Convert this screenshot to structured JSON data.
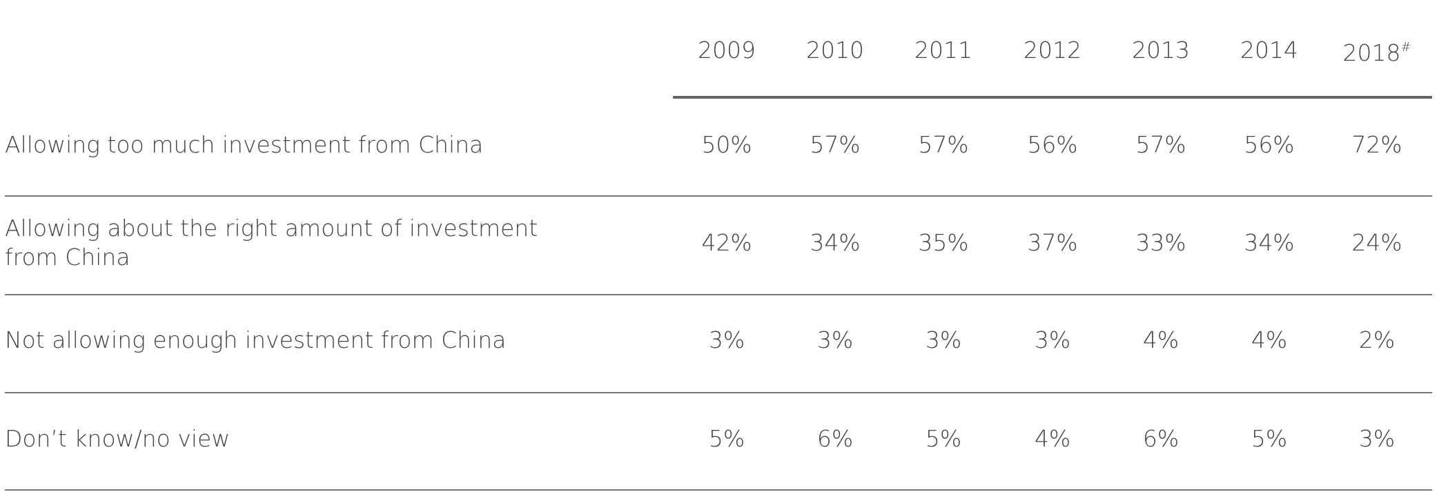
{
  "table": {
    "header": {
      "columns": [
        "2009",
        "2010",
        "2011",
        "2012",
        "2013",
        "2014",
        "2018"
      ],
      "footnote_mark": "#"
    },
    "rows": [
      [
        "Allowing too much investment from China",
        "50%",
        "57%",
        "57%",
        "56%",
        "57%",
        "56%",
        "72%"
      ],
      [
        "Allowing about the right amount of investment from China",
        "42%",
        "34%",
        "35%",
        "37%",
        "33%",
        "34%",
        "24%"
      ],
      [
        "Not allowing enough investment from China",
        "3%",
        "3%",
        "3%",
        "3%",
        "4%",
        "4%",
        "2%"
      ],
      [
        "Don’t know/no view",
        "5%",
        "6%",
        "5%",
        "4%",
        "6%",
        "5%",
        "3%"
      ]
    ]
  }
}
